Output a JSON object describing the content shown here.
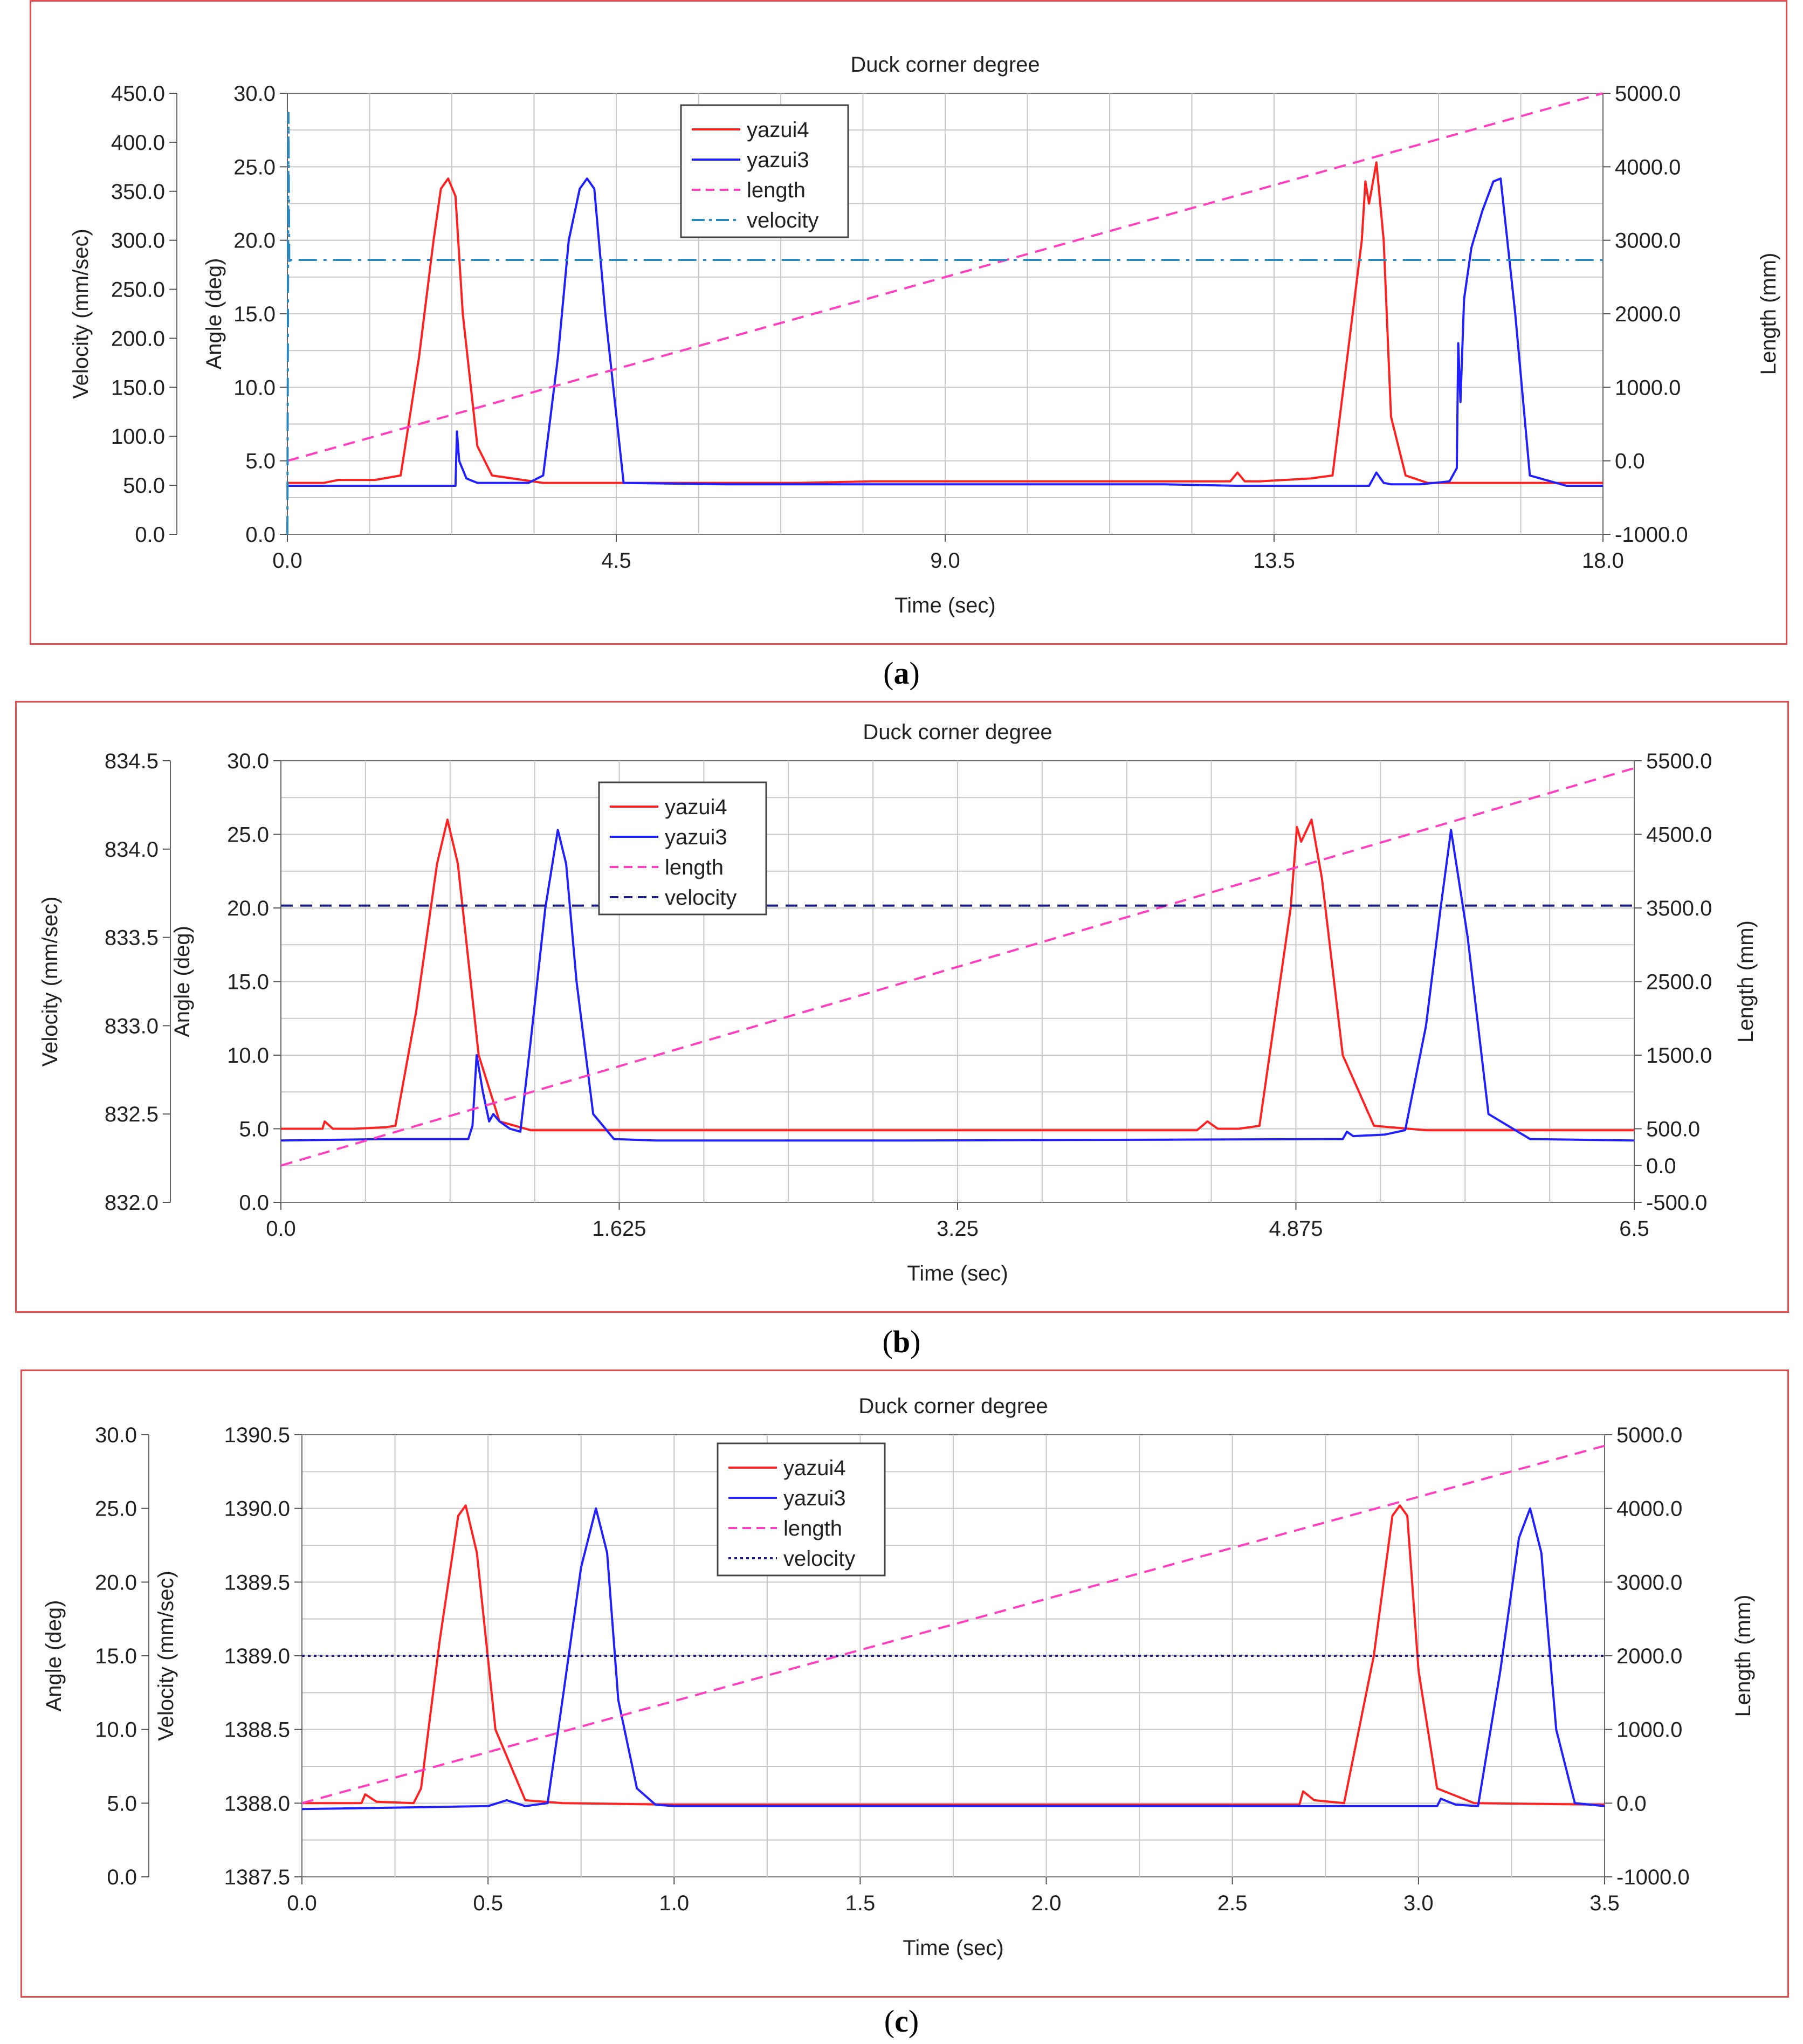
{
  "figure": {
    "panels": [
      {
        "caption_open": "(",
        "caption_letter": "a",
        "caption_close": ")"
      },
      {
        "caption_open": "(",
        "caption_letter": "b",
        "caption_close": ")"
      },
      {
        "caption_open": "(",
        "caption_letter": "c",
        "caption_close": ")"
      }
    ]
  },
  "colors": {
    "yazui4": "#ff2020",
    "yazui3": "#1f1fff",
    "length": "#ff3fbf",
    "velocity_a": "#2a8ac0",
    "velocity_b": "#1a1a80",
    "velocity_c": "#1a1a90",
    "frame": "#e84b4b",
    "grid": "#c8c8c8"
  },
  "chart_data": [
    {
      "type": "line",
      "title": "Duck corner degree",
      "xlabel": "Time (sec)",
      "x_range": [
        0,
        18
      ],
      "x_ticks": [
        "0.0",
        "4.5",
        "9.0",
        "13.5",
        "18.0"
      ],
      "axes": [
        {
          "label": "Velocity (mm/sec)",
          "range": [
            0,
            450
          ],
          "ticks": [
            "0.0",
            "50.0",
            "100.0",
            "150.0",
            "200.0",
            "250.0",
            "300.0",
            "350.0",
            "400.0",
            "450.0"
          ]
        },
        {
          "label": "Angle (deg)",
          "range": [
            0,
            30
          ],
          "ticks": [
            "0.0",
            "5.0",
            "10.0",
            "15.0",
            "20.0",
            "25.0",
            "30.0"
          ]
        },
        {
          "label": "Length (mm)",
          "range": [
            -1000,
            5000
          ],
          "ticks": [
            "-1000.0",
            "0.0",
            "1000.0",
            "2000.0",
            "3000.0",
            "4000.0",
            "5000.0"
          ]
        }
      ],
      "legend": [
        "yazui4",
        "yazui3",
        "length",
        "velocity"
      ],
      "legend_position": "top-center",
      "series": [
        {
          "name": "yazui4",
          "axis": "Angle (deg)",
          "style": "solid",
          "color": "#ff2020",
          "x": [
            0,
            0.5,
            0.7,
            1.2,
            1.55,
            1.8,
            2.0,
            2.1,
            2.2,
            2.3,
            2.4,
            2.6,
            2.8,
            3.5,
            7.0,
            8.0,
            9.5,
            12.0,
            12.9,
            13.0,
            13.1,
            13.3,
            14.0,
            14.3,
            14.5,
            14.7,
            14.75,
            14.8,
            14.9,
            15.0,
            15.1,
            15.3,
            15.6,
            16.5,
            18.0
          ],
          "y": [
            3.5,
            3.5,
            3.7,
            3.7,
            4.0,
            12.0,
            20.0,
            23.5,
            24.2,
            23.0,
            15.0,
            6.0,
            4.0,
            3.5,
            3.5,
            3.6,
            3.6,
            3.6,
            3.6,
            4.2,
            3.6,
            3.6,
            3.8,
            4.0,
            12.0,
            20.0,
            24.0,
            22.5,
            25.3,
            20.0,
            8.0,
            4.0,
            3.5,
            3.5,
            3.5
          ]
        },
        {
          "name": "yazui3",
          "axis": "Angle (deg)",
          "style": "solid",
          "color": "#1f1fff",
          "x": [
            0,
            1.0,
            2.3,
            2.32,
            2.35,
            2.45,
            2.6,
            2.7,
            3.0,
            3.3,
            3.5,
            3.7,
            3.85,
            4.0,
            4.1,
            4.2,
            4.35,
            4.6,
            6.0,
            8.0,
            12.0,
            13.0,
            14.8,
            14.9,
            15.0,
            15.1,
            15.5,
            15.9,
            16.0,
            16.02,
            16.05,
            16.1,
            16.2,
            16.35,
            16.5,
            16.6,
            16.8,
            17.0,
            17.5,
            18.0
          ],
          "y": [
            3.3,
            3.3,
            3.3,
            7.0,
            5.0,
            3.8,
            3.5,
            3.5,
            3.5,
            3.5,
            4.0,
            12.0,
            20.0,
            23.5,
            24.2,
            23.5,
            15.0,
            3.5,
            3.4,
            3.4,
            3.4,
            3.3,
            3.3,
            4.2,
            3.5,
            3.4,
            3.4,
            3.6,
            4.5,
            13.0,
            9.0,
            16.0,
            19.5,
            22.0,
            24.0,
            24.2,
            15.0,
            4.0,
            3.3,
            3.3
          ]
        },
        {
          "name": "length",
          "axis": "Length (mm)",
          "style": "dashed",
          "color": "#ff3fbf",
          "x": [
            0,
            18
          ],
          "y": [
            0,
            5000
          ]
        },
        {
          "name": "velocity",
          "axis": "Velocity (mm/sec)",
          "style": "dash-dot",
          "color": "#2a8ac0",
          "x": [
            0,
            0.015,
            0.025,
            0.04,
            18
          ],
          "y": [
            0,
            430,
            275,
            280,
            280
          ]
        }
      ]
    },
    {
      "type": "line",
      "title": "Duck corner degree",
      "xlabel": "Time (sec)",
      "x_range": [
        0,
        6.5
      ],
      "x_ticks": [
        "0.0",
        "1.625",
        "3.25",
        "4.875",
        "6.5"
      ],
      "axes": [
        {
          "label": "Velocity (mm/sec)",
          "range": [
            832.0,
            834.5
          ],
          "ticks": [
            "832.0",
            "832.5",
            "833.0",
            "833.5",
            "834.0",
            "834.5"
          ]
        },
        {
          "label": "Angle (deg)",
          "range": [
            0,
            30
          ],
          "ticks": [
            "0.0",
            "5.0",
            "10.0",
            "15.0",
            "20.0",
            "25.0",
            "30.0"
          ]
        },
        {
          "label": "Length (mm)",
          "range": [
            -500,
            5500
          ],
          "ticks": [
            "-500.0",
            "0.0",
            "500.0",
            "1500.0",
            "2500.0",
            "3500.0",
            "4500.0",
            "5500.0"
          ]
        }
      ],
      "legend": [
        "yazui4",
        "yazui3",
        "length",
        "velocity"
      ],
      "legend_position": "top-center",
      "series": [
        {
          "name": "yazui4",
          "axis": "Angle (deg)",
          "style": "solid",
          "color": "#ff2020",
          "x": [
            0,
            0.2,
            0.21,
            0.25,
            0.35,
            0.5,
            0.55,
            0.65,
            0.75,
            0.8,
            0.85,
            0.95,
            1.05,
            1.2,
            1.5,
            4.4,
            4.45,
            4.5,
            4.6,
            4.7,
            4.85,
            4.88,
            4.9,
            4.95,
            5.0,
            5.1,
            5.25,
            5.5,
            6.5
          ],
          "y": [
            5.0,
            5.0,
            5.5,
            5.0,
            5.0,
            5.1,
            5.2,
            13.0,
            23.0,
            26.0,
            23.0,
            10.0,
            5.5,
            4.9,
            4.9,
            4.9,
            5.5,
            5.0,
            5.0,
            5.2,
            20.0,
            25.5,
            24.5,
            26.0,
            22.0,
            10.0,
            5.2,
            4.9,
            4.9
          ]
        },
        {
          "name": "yazui3",
          "axis": "Angle (deg)",
          "style": "solid",
          "color": "#1f1fff",
          "x": [
            0,
            0.5,
            0.9,
            0.92,
            0.94,
            0.97,
            1.0,
            1.02,
            1.05,
            1.1,
            1.15,
            1.2,
            1.27,
            1.33,
            1.37,
            1.42,
            1.5,
            1.6,
            1.8,
            3.0,
            5.1,
            5.12,
            5.15,
            5.3,
            5.4,
            5.5,
            5.57,
            5.62,
            5.7,
            5.8,
            6.0,
            6.5
          ],
          "y": [
            4.2,
            4.3,
            4.3,
            5.2,
            10.0,
            7.5,
            5.5,
            6.0,
            5.5,
            5.0,
            4.8,
            11.0,
            20.0,
            25.3,
            23.0,
            15.0,
            6.0,
            4.3,
            4.2,
            4.2,
            4.3,
            4.8,
            4.5,
            4.6,
            4.9,
            12.0,
            20.0,
            25.3,
            18.0,
            6.0,
            4.3,
            4.2
          ]
        },
        {
          "name": "length",
          "axis": "Length (mm)",
          "style": "dashed",
          "color": "#ff3fbf",
          "x": [
            0,
            6.5
          ],
          "y": [
            0,
            5400
          ]
        },
        {
          "name": "velocity",
          "axis": "Velocity (mm/sec)",
          "style": "dashed",
          "color": "#1a1a80",
          "x": [
            0,
            6.5
          ],
          "y": [
            833.68,
            833.68
          ]
        }
      ]
    },
    {
      "type": "line",
      "title": "Duck corner degree",
      "xlabel": "Time (sec)",
      "x_range": [
        0,
        3.5
      ],
      "x_ticks": [
        "0.0",
        "0.5",
        "1.0",
        "1.5",
        "2.0",
        "2.5",
        "3.0",
        "3.5"
      ],
      "axes": [
        {
          "label": "Angle (deg)",
          "range": [
            0,
            30
          ],
          "ticks": [
            "0.0",
            "5.0",
            "10.0",
            "15.0",
            "20.0",
            "25.0",
            "30.0"
          ]
        },
        {
          "label": "Velocity (mm/sec)",
          "range": [
            1387.5,
            1390.5
          ],
          "ticks": [
            "1387.5",
            "1388.0",
            "1388.5",
            "1389.0",
            "1389.5",
            "1390.0",
            "1390.5"
          ]
        },
        {
          "label": "Length (mm)",
          "range": [
            -1000,
            5000
          ],
          "ticks": [
            "-1000.0",
            "0.0",
            "1000.0",
            "2000.0",
            "3000.0",
            "4000.0",
            "5000.0"
          ]
        }
      ],
      "legend": [
        "yazui4",
        "yazui3",
        "length",
        "velocity"
      ],
      "legend_position": "top-center",
      "series": [
        {
          "name": "yazui4",
          "axis": "Angle (deg)",
          "style": "solid",
          "color": "#ff2020",
          "x": [
            0,
            0.16,
            0.17,
            0.2,
            0.3,
            0.32,
            0.37,
            0.42,
            0.44,
            0.47,
            0.52,
            0.6,
            0.7,
            1.0,
            2.0,
            2.68,
            2.69,
            2.72,
            2.8,
            2.88,
            2.93,
            2.95,
            2.97,
            3.0,
            3.05,
            3.15,
            3.5
          ],
          "y": [
            5.0,
            5.0,
            5.6,
            5.1,
            5.0,
            6.0,
            16.0,
            24.5,
            25.2,
            22.0,
            10.0,
            5.2,
            5.0,
            4.9,
            4.9,
            4.9,
            5.8,
            5.2,
            5.0,
            15.0,
            24.5,
            25.2,
            24.5,
            14.0,
            6.0,
            5.0,
            4.9
          ]
        },
        {
          "name": "yazui3",
          "axis": "Angle (deg)",
          "style": "solid",
          "color": "#1f1fff",
          "x": [
            0,
            0.5,
            0.55,
            0.6,
            0.66,
            0.7,
            0.75,
            0.79,
            0.82,
            0.85,
            0.9,
            0.95,
            1.0,
            2.0,
            3.05,
            3.06,
            3.1,
            3.16,
            3.22,
            3.27,
            3.3,
            3.33,
            3.37,
            3.42,
            3.5
          ],
          "y": [
            4.6,
            4.8,
            5.2,
            4.8,
            5.0,
            12.0,
            21.0,
            25.0,
            22.0,
            12.0,
            6.0,
            4.9,
            4.8,
            4.8,
            4.8,
            5.3,
            4.9,
            4.8,
            14.0,
            23.0,
            25.0,
            22.0,
            10.0,
            5.0,
            4.8
          ]
        },
        {
          "name": "length",
          "axis": "Length (mm)",
          "style": "dashed",
          "color": "#ff3fbf",
          "x": [
            0,
            3.5
          ],
          "y": [
            0,
            4850
          ]
        },
        {
          "name": "velocity",
          "axis": "Velocity (mm/sec)",
          "style": "dotted",
          "color": "#1a1a90",
          "x": [
            0,
            3.5
          ],
          "y": [
            1389.0,
            1389.0
          ]
        }
      ]
    }
  ]
}
